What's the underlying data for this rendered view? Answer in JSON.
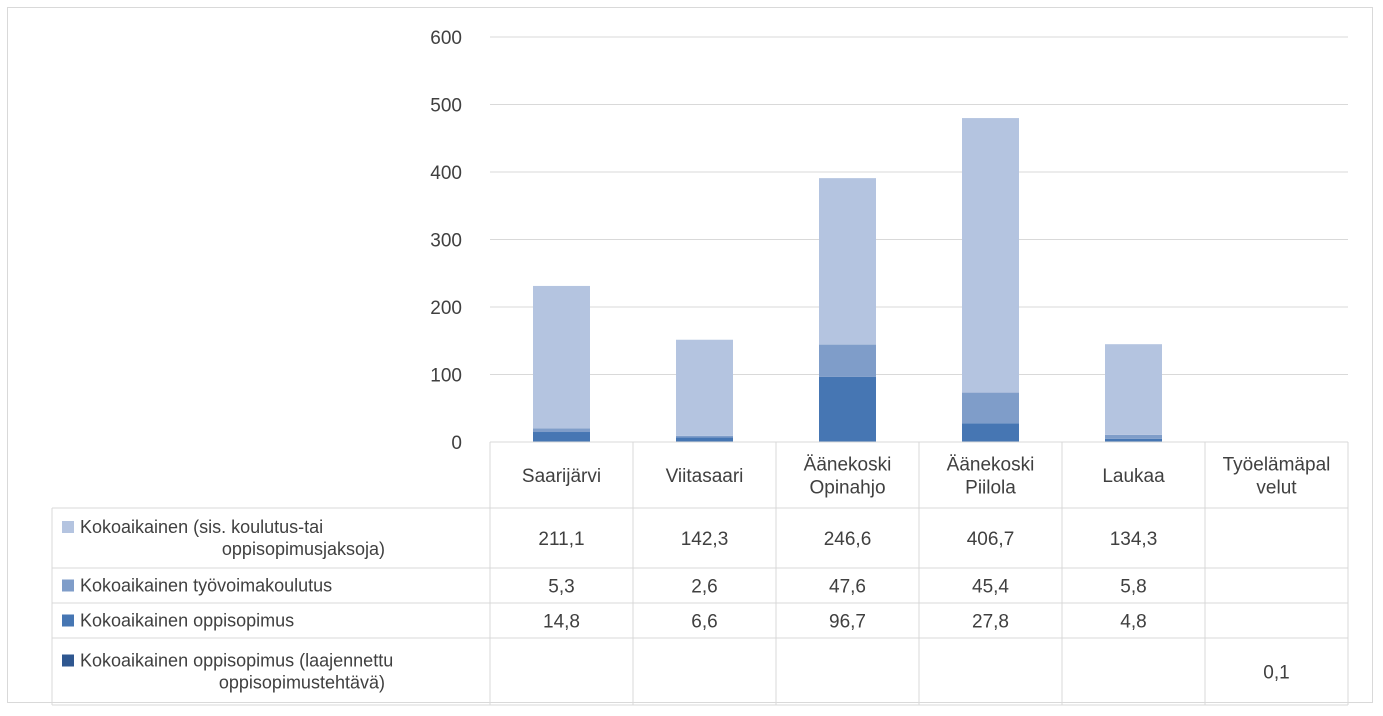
{
  "chart_data": {
    "type": "bar",
    "stacked": true,
    "categories": [
      [
        "Saarijärvi"
      ],
      [
        "Viitasaari"
      ],
      [
        "Äänekoski",
        "Opinahjo"
      ],
      [
        "Äänekoski",
        "Piilola"
      ],
      [
        "Laukaa"
      ],
      [
        "Työelämäpal",
        "velut"
      ]
    ],
    "ylim": [
      0,
      600
    ],
    "yticks": [
      0,
      100,
      200,
      300,
      400,
      500,
      600
    ],
    "grid": true,
    "legend": "data-table",
    "series": [
      {
        "name": [
          "Kokoaikainen (sis. koulutus-tai",
          "oppisopimusjaksoja)"
        ],
        "color": "#b4c4e0",
        "values": [
          211.1,
          142.3,
          246.6,
          406.7,
          134.3,
          null
        ],
        "labels": [
          "211,1",
          "142,3",
          "246,6",
          "406,7",
          "134,3",
          ""
        ]
      },
      {
        "name": [
          "Kokoaikainen työvoimakoulutus"
        ],
        "color": "#7f9dc9",
        "values": [
          5.3,
          2.6,
          47.6,
          45.4,
          5.8,
          null
        ],
        "labels": [
          "5,3",
          "2,6",
          "47,6",
          "45,4",
          "5,8",
          ""
        ]
      },
      {
        "name": [
          "Kokoaikainen oppisopimus"
        ],
        "color": "#4676b3",
        "values": [
          14.8,
          6.6,
          96.7,
          27.8,
          4.8,
          null
        ],
        "labels": [
          "14,8",
          "6,6",
          "96,7",
          "27,8",
          "4,8",
          ""
        ]
      },
      {
        "name": [
          "Kokoaikainen oppisopimus (laajennettu",
          "oppisopimustehtävä)"
        ],
        "color": "#2f5790",
        "values": [
          null,
          null,
          null,
          null,
          null,
          0.1
        ],
        "labels": [
          "",
          "",
          "",
          "",
          "",
          "0,1"
        ]
      }
    ]
  }
}
